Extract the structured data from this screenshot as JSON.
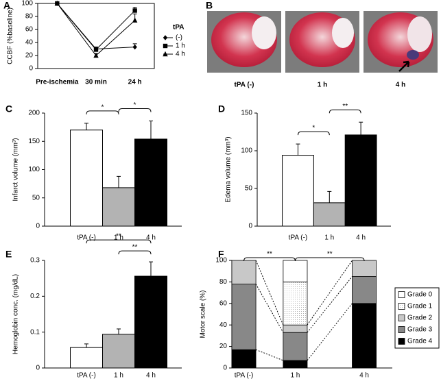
{
  "chart_data": [
    {
      "type": "line",
      "label": "A",
      "ylabel": "CCBF (%baseline)",
      "categories": [
        "Pre-ischemia",
        "30 min",
        "24 h"
      ],
      "ylim": [
        0,
        100
      ],
      "yticks": [
        0,
        20,
        40,
        60,
        80,
        100
      ],
      "legend_title": "tPA",
      "series": [
        {
          "name": "(-)",
          "marker": "diamond",
          "color": "#000000",
          "values": [
            100,
            30,
            33
          ],
          "errors": [
            null,
            3,
            5
          ]
        },
        {
          "name": "1 h",
          "marker": "square",
          "color": "#000000",
          "values": [
            100,
            29,
            89
          ],
          "errors": [
            null,
            3,
            5
          ]
        },
        {
          "name": "4 h",
          "marker": "triangle",
          "color": "#000000",
          "values": [
            100,
            20,
            74
          ],
          "errors": [
            null,
            3,
            10
          ]
        }
      ]
    },
    {
      "type": "bar",
      "label": "C",
      "ylabel": "Infarct volume (mm³)",
      "categories": [
        "tPA (-)",
        "1 h",
        "4 h"
      ],
      "values": [
        170,
        68,
        154
      ],
      "errors": [
        12,
        20,
        32
      ],
      "colors": [
        "#ffffff",
        "#b3b3b3",
        "#000000"
      ],
      "ylim": [
        0,
        200
      ],
      "yticks": [
        0,
        50,
        100,
        150,
        200
      ],
      "annotations": [
        "*",
        "*"
      ]
    },
    {
      "type": "bar",
      "label": "D",
      "ylabel": "Edema volume (mm³)",
      "categories": [
        "tPA (-)",
        "1 h",
        "4 h"
      ],
      "values": [
        94,
        31,
        121
      ],
      "errors": [
        15,
        15,
        17
      ],
      "colors": [
        "#ffffff",
        "#b3b3b3",
        "#000000"
      ],
      "ylim": [
        0,
        150
      ],
      "yticks": [
        0,
        50,
        100,
        150
      ],
      "annotations": [
        "*",
        "**"
      ]
    },
    {
      "type": "bar",
      "label": "E",
      "ylabel": "Hemoglobin conc. (mg/dL)",
      "categories": [
        "tPA (-)",
        "1 h",
        "4 h"
      ],
      "values": [
        0.057,
        0.094,
        0.256
      ],
      "errors": [
        0.01,
        0.015,
        0.04
      ],
      "colors": [
        "#ffffff",
        "#b3b3b3",
        "#000000"
      ],
      "ylim": [
        0,
        0.3
      ],
      "yticks": [
        0,
        0.1,
        0.2,
        0.3
      ],
      "annotations": [
        "**",
        "**"
      ]
    },
    {
      "type": "stacked_bar",
      "label": "F",
      "ylabel": "Motor scale (%)",
      "categories": [
        "tPA (-)",
        "1 h",
        "4 h"
      ],
      "ylim": [
        0,
        100
      ],
      "yticks": [
        0,
        20,
        40,
        60,
        80,
        100
      ],
      "annotations": [
        "**",
        "**"
      ],
      "series": [
        {
          "name": "Grade 0",
          "color": "#ffffff",
          "values": [
            0,
            20,
            0
          ]
        },
        {
          "name": "Grade 1",
          "color": "#ececec",
          "values": [
            0,
            40,
            0
          ]
        },
        {
          "name": "Grade 2",
          "color": "#c8c8c8",
          "values": [
            22,
            7,
            15
          ]
        },
        {
          "name": "Grade 3",
          "color": "#888888",
          "values": [
            61,
            26,
            25
          ]
        },
        {
          "name": "Grade 4",
          "color": "#000000",
          "values": [
            17,
            7,
            60
          ]
        }
      ]
    }
  ],
  "images": {
    "label": "B",
    "captions": [
      "tPA (-)",
      "1 h",
      "4 h"
    ]
  }
}
